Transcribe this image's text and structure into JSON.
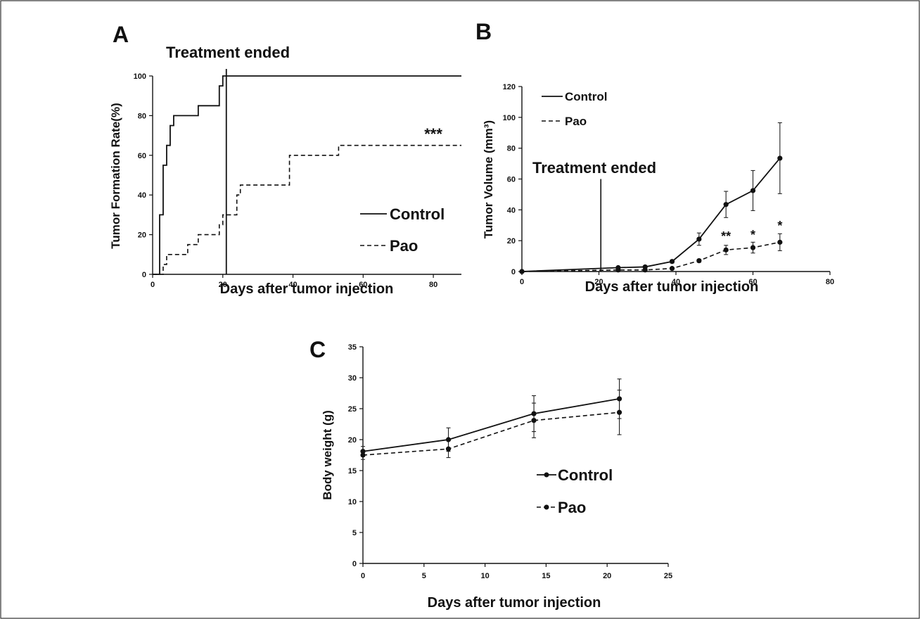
{
  "chart_data": [
    {
      "panel": "A",
      "type": "line",
      "step": true,
      "xlabel": "Days after tumor injection",
      "ylabel": "Tumor Formation Rate(%)",
      "xlim": [
        0,
        88
      ],
      "ylim": [
        0,
        105
      ],
      "xticks": [
        0,
        20,
        40,
        60,
        80
      ],
      "yticks": [
        0,
        20,
        40,
        60,
        80,
        100
      ],
      "legend_position": "bottom-right",
      "series": [
        {
          "name": "Control",
          "style": "solid",
          "x": [
            0,
            2,
            3,
            4,
            5,
            6,
            12,
            13,
            18,
            19,
            20,
            21,
            88
          ],
          "y": [
            0,
            30,
            55,
            65,
            75,
            80,
            80,
            85,
            85,
            95,
            100,
            100,
            100
          ]
        },
        {
          "name": "Pao",
          "style": "dashed",
          "x": [
            0,
            3,
            4,
            7,
            10,
            13,
            18,
            19,
            20,
            23,
            24,
            25,
            38,
            39,
            52,
            53,
            88
          ],
          "y": [
            0,
            5,
            10,
            10,
            15,
            20,
            20,
            25,
            30,
            30,
            40,
            45,
            45,
            60,
            60,
            65,
            65
          ]
        }
      ],
      "vline": {
        "x": 21,
        "label": "Treatment ended"
      },
      "annotations": [
        {
          "text": "***",
          "x": 80,
          "y": 68
        }
      ]
    },
    {
      "panel": "B",
      "type": "line",
      "xlabel": "Days after tumor injection",
      "ylabel": "Tumor Volume (mm³)",
      "xlim": [
        0,
        80
      ],
      "ylim": [
        0,
        120
      ],
      "xticks": [
        0,
        20,
        40,
        60,
        80
      ],
      "yticks": [
        0,
        20,
        40,
        60,
        80,
        100,
        120
      ],
      "legend_position": "top-left",
      "series": [
        {
          "name": "Control",
          "style": "solid",
          "x": [
            0,
            25,
            32,
            39,
            46,
            53,
            60,
            67
          ],
          "y": [
            0,
            2.5,
            3,
            6.5,
            21,
            43.5,
            52.5,
            73.5
          ],
          "err": [
            0,
            0.5,
            0.5,
            1,
            4,
            8.5,
            13,
            23
          ]
        },
        {
          "name": "Pao",
          "style": "dashed",
          "x": [
            0,
            25,
            32,
            39,
            46,
            53,
            60,
            67
          ],
          "y": [
            0,
            1,
            1,
            2,
            7,
            14,
            15.5,
            19
          ],
          "err": [
            0,
            0.5,
            0.5,
            0.5,
            1,
            3,
            3.5,
            5.5
          ]
        }
      ],
      "vline": {
        "x": 20.5,
        "y_top": 60,
        "label": "Treatment ended"
      },
      "annotations": [
        {
          "text": "**",
          "x": 53,
          "y": 20
        },
        {
          "text": "*",
          "x": 60,
          "y": 21
        },
        {
          "text": "*",
          "x": 67,
          "y": 27
        }
      ]
    },
    {
      "panel": "C",
      "type": "line",
      "xlabel": "Days after tumor injection",
      "ylabel": "Body weight (g)",
      "xlim": [
        0,
        25
      ],
      "ylim": [
        0,
        35
      ],
      "xticks": [
        0,
        5,
        10,
        15,
        20,
        25
      ],
      "yticks": [
        0,
        5,
        10,
        15,
        20,
        25,
        30,
        35
      ],
      "legend_position": "center-right",
      "series": [
        {
          "name": "Control",
          "style": "solid",
          "x": [
            0,
            7,
            14,
            21
          ],
          "y": [
            18.1,
            20,
            24.2,
            26.6
          ],
          "err": [
            0.8,
            1.9,
            2.9,
            3.2
          ]
        },
        {
          "name": "Pao",
          "style": "dashed",
          "x": [
            0,
            7,
            14,
            21
          ],
          "y": [
            17.5,
            18.5,
            23.1,
            24.4
          ],
          "err": [
            0.7,
            1.4,
            2.8,
            3.6
          ]
        }
      ]
    }
  ]
}
